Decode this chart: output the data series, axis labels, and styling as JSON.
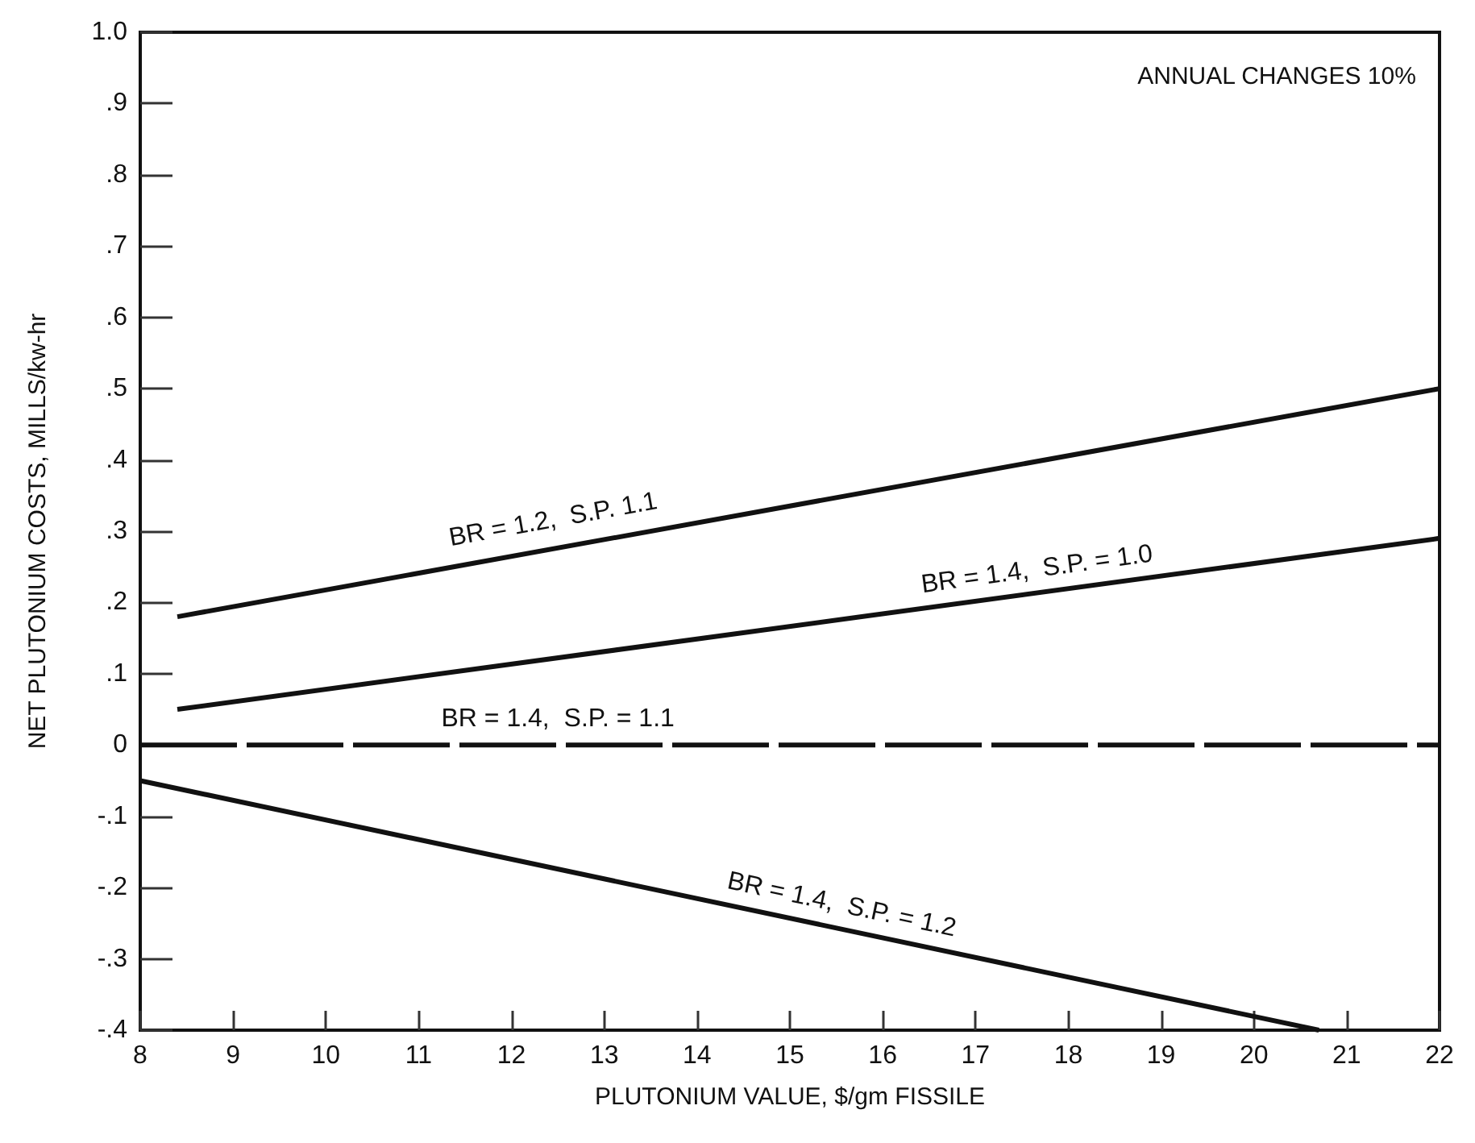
{
  "chart_data": {
    "type": "line",
    "xlabel": "PLUTONIUM VALUE, $/gm FISSILE",
    "ylabel": "NET PLUTONIUM COSTS, MILLS/kw-hr",
    "xlim": [
      8,
      22
    ],
    "xticks": [
      8,
      9,
      10,
      11,
      12,
      13,
      14,
      15,
      16,
      17,
      18,
      19,
      20,
      21,
      22
    ],
    "ylim": [
      -0.4,
      1.0
    ],
    "yticks": [
      {
        "value": -0.4,
        "label": "-.4"
      },
      {
        "value": -0.3,
        "label": "-.3"
      },
      {
        "value": -0.2,
        "label": "-.2"
      },
      {
        "value": -0.1,
        "label": "-.1"
      },
      0,
      {
        "value": 0.1,
        "label": ".1"
      },
      {
        "value": 0.2,
        "label": ".2"
      },
      {
        "value": 0.3,
        "label": ".3"
      },
      {
        "value": 0.4,
        "label": ".4"
      },
      {
        "value": 0.5,
        "label": ".5"
      },
      {
        "value": 0.6,
        "label": ".6"
      },
      {
        "value": 0.7,
        "label": ".7"
      },
      {
        "value": 0.8,
        "label": ".8"
      },
      {
        "value": 0.9,
        "label": ".9"
      },
      {
        "value": 1.0,
        "label": "1.0"
      }
    ],
    "grid": false,
    "marker": "none",
    "series": [
      {
        "color": "#111111",
        "x": [
          8.4,
          22
        ],
        "values": [
          0.18,
          0.5
        ]
      },
      {
        "color": "#111111",
        "x": [
          8.4,
          22
        ],
        "values": [
          0.05,
          0.29
        ]
      },
      {
        "color": "#111111",
        "x": [
          8,
          22
        ],
        "values": [
          0,
          0
        ],
        "line_style": "dashed"
      },
      {
        "color": "#111111",
        "x": [
          8,
          20.7
        ],
        "values": [
          -0.05,
          -0.4
        ]
      }
    ],
    "annotations": [
      "ANNUAL CHANGES 10%",
      {
        "text": "BR = 1.2,  S.P. 1.1",
        "x": 12.5,
        "y": 0.28
      },
      {
        "text": "BR = 1.4,  S.P. = 1.0",
        "x": 17.7,
        "y": 0.21
      },
      {
        "text": "BR = 1.4,  S.P. = 1.1",
        "x": 12.5,
        "y": 0
      },
      {
        "text": "BR = 1.4,  S.P. = 1.2",
        "x": 15.5,
        "y": -0.26
      }
    ]
  }
}
